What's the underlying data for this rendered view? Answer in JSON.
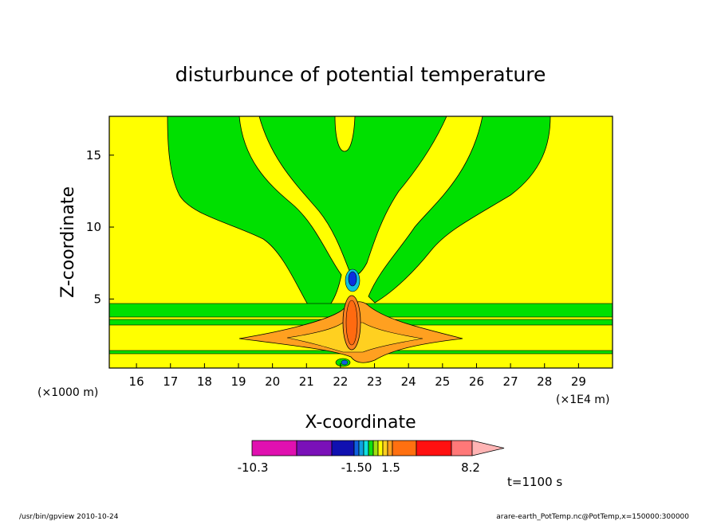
{
  "chart_data": {
    "type": "contour",
    "title": "disturbunce of potential temperature",
    "xlabel": "X-coordinate",
    "ylabel": "Z-coordinate",
    "x_unit_label": "(×1E4 m)",
    "y_unit_label": "(×1000 m)",
    "xlim": [
      15.2,
      30.0
    ],
    "ylim": [
      0.2,
      17.7
    ],
    "x_ticks": [
      "16",
      "17",
      "18",
      "19",
      "20",
      "21",
      "22",
      "23",
      "24",
      "25",
      "26",
      "27",
      "28",
      "29"
    ],
    "y_ticks": [
      "5",
      "10",
      "15"
    ],
    "colorbar": {
      "labels": [
        "-10.3",
        "-1.50",
        "1.5",
        "8.2"
      ],
      "colors": [
        "#e010b0",
        "#7a10b8",
        "#1010b0",
        "#1060e0",
        "#10a0e0",
        "#10e0e0",
        "#10e010",
        "#a0e010",
        "#ffff00",
        "#ffd020",
        "#ffa020",
        "#ff7010",
        "#ff1010",
        "#ff7878",
        "#ffb4b4"
      ]
    },
    "annotation": "t=1100 s",
    "colors": {
      "background": "#ffff00",
      "negative": "#00e000",
      "positive": "#ffa020",
      "peak": "#ff6a10",
      "min": "#0b2fe0"
    }
  },
  "footer": {
    "left": "/usr/bin/gpview  2010-10-24",
    "right": "arare-earth_PotTemp.nc@PotTemp,x=150000:300000"
  }
}
